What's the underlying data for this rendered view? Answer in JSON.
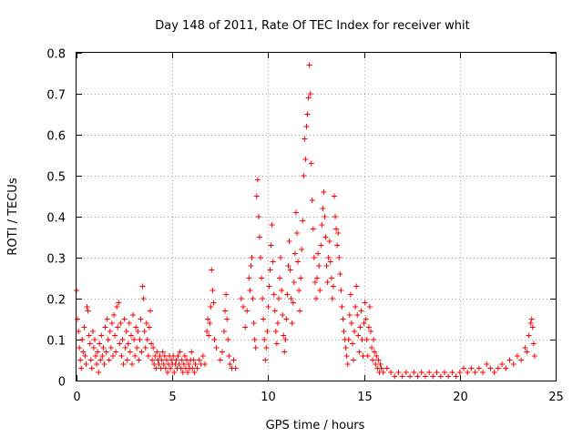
{
  "chart_data": {
    "type": "scatter",
    "title": "Day 148 of 2011, Rate Of TEC Index for receiver whit",
    "xlabel": "GPS time / hours",
    "ylabel": "ROTI / TECUs",
    "xlim": [
      0,
      25
    ],
    "ylim": [
      0,
      0.8
    ],
    "xticks": [
      0,
      5,
      10,
      15,
      20,
      25
    ],
    "yticks": [
      0,
      0.1,
      0.2,
      0.3,
      0.4,
      0.5,
      0.6,
      0.7,
      0.8
    ],
    "xtick_labels": [
      "0",
      "5",
      "10",
      "15",
      "20",
      "25"
    ],
    "ytick_labels": [
      "0",
      "0.1",
      "0.2",
      "0.3",
      "0.4",
      "0.5",
      "0.6",
      "0.7",
      "0.8"
    ],
    "grid": true,
    "marker": "plus",
    "color": "#ff0000",
    "points": [
      [
        0.0,
        0.22
      ],
      [
        0.05,
        0.15
      ],
      [
        0.1,
        0.12
      ],
      [
        0.15,
        0.08
      ],
      [
        0.2,
        0.05
      ],
      [
        0.25,
        0.03
      ],
      [
        0.3,
        0.1
      ],
      [
        0.35,
        0.07
      ],
      [
        0.4,
        0.13
      ],
      [
        0.45,
        0.06
      ],
      [
        0.5,
        0.04
      ],
      [
        0.55,
        0.18
      ],
      [
        0.6,
        0.17
      ],
      [
        0.65,
        0.11
      ],
      [
        0.7,
        0.09
      ],
      [
        0.75,
        0.05
      ],
      [
        0.8,
        0.03
      ],
      [
        0.85,
        0.12
      ],
      [
        0.9,
        0.08
      ],
      [
        0.95,
        0.1
      ],
      [
        1.0,
        0.06
      ],
      [
        1.05,
        0.04
      ],
      [
        1.1,
        0.07
      ],
      [
        1.15,
        0.02
      ],
      [
        1.2,
        0.09
      ],
      [
        1.25,
        0.05
      ],
      [
        1.3,
        0.11
      ],
      [
        1.35,
        0.06
      ],
      [
        1.4,
        0.08
      ],
      [
        1.45,
        0.04
      ],
      [
        1.5,
        0.13
      ],
      [
        1.55,
        0.07
      ],
      [
        1.6,
        0.15
      ],
      [
        1.65,
        0.1
      ],
      [
        1.7,
        0.05
      ],
      [
        1.75,
        0.12
      ],
      [
        1.8,
        0.08
      ],
      [
        1.85,
        0.14
      ],
      [
        1.9,
        0.06
      ],
      [
        1.95,
        0.16
      ],
      [
        2.0,
        0.11
      ],
      [
        2.05,
        0.07
      ],
      [
        2.1,
        0.18
      ],
      [
        2.15,
        0.13
      ],
      [
        2.2,
        0.19
      ],
      [
        2.25,
        0.09
      ],
      [
        2.3,
        0.14
      ],
      [
        2.35,
        0.06
      ],
      [
        2.4,
        0.1
      ],
      [
        2.45,
        0.04
      ],
      [
        2.5,
        0.15
      ],
      [
        2.55,
        0.08
      ],
      [
        2.6,
        0.12
      ],
      [
        2.65,
        0.05
      ],
      [
        2.7,
        0.09
      ],
      [
        2.75,
        0.14
      ],
      [
        2.8,
        0.07
      ],
      [
        2.85,
        0.11
      ],
      [
        2.9,
        0.04
      ],
      [
        2.95,
        0.16
      ],
      [
        3.0,
        0.1
      ],
      [
        3.05,
        0.06
      ],
      [
        3.1,
        0.13
      ],
      [
        3.15,
        0.08
      ],
      [
        3.2,
        0.12
      ],
      [
        3.25,
        0.05
      ],
      [
        3.3,
        0.1
      ],
      [
        3.35,
        0.15
      ],
      [
        3.4,
        0.07
      ],
      [
        3.45,
        0.23
      ],
      [
        3.5,
        0.2
      ],
      [
        3.55,
        0.12
      ],
      [
        3.6,
        0.08
      ],
      [
        3.65,
        0.14
      ],
      [
        3.7,
        0.1
      ],
      [
        3.75,
        0.06
      ],
      [
        3.8,
        0.13
      ],
      [
        3.85,
        0.17
      ],
      [
        3.9,
        0.09
      ],
      [
        3.95,
        0.05
      ],
      [
        4.0,
        0.08
      ],
      [
        4.05,
        0.04
      ],
      [
        4.1,
        0.06
      ],
      [
        4.15,
        0.03
      ],
      [
        4.2,
        0.07
      ],
      [
        4.25,
        0.05
      ],
      [
        4.3,
        0.04
      ],
      [
        4.35,
        0.06
      ],
      [
        4.4,
        0.03
      ],
      [
        4.45,
        0.05
      ],
      [
        4.5,
        0.07
      ],
      [
        4.55,
        0.04
      ],
      [
        4.6,
        0.06
      ],
      [
        4.65,
        0.03
      ],
      [
        4.7,
        0.05
      ],
      [
        4.75,
        0.02
      ],
      [
        4.8,
        0.04
      ],
      [
        4.85,
        0.06
      ],
      [
        4.9,
        0.03
      ],
      [
        4.95,
        0.05
      ],
      [
        5.0,
        0.04
      ],
      [
        5.05,
        0.06
      ],
      [
        5.1,
        0.02
      ],
      [
        5.15,
        0.04
      ],
      [
        5.2,
        0.05
      ],
      [
        5.25,
        0.03
      ],
      [
        5.3,
        0.06
      ],
      [
        5.35,
        0.04
      ],
      [
        5.4,
        0.07
      ],
      [
        5.45,
        0.03
      ],
      [
        5.5,
        0.05
      ],
      [
        5.55,
        0.02
      ],
      [
        5.6,
        0.04
      ],
      [
        5.65,
        0.06
      ],
      [
        5.7,
        0.03
      ],
      [
        5.75,
        0.05
      ],
      [
        5.8,
        0.02
      ],
      [
        5.85,
        0.04
      ],
      [
        5.9,
        0.03
      ],
      [
        5.95,
        0.05
      ],
      [
        6.0,
        0.07
      ],
      [
        6.05,
        0.03
      ],
      [
        6.1,
        0.05
      ],
      [
        6.15,
        0.02
      ],
      [
        6.2,
        0.04
      ],
      [
        6.3,
        0.03
      ],
      [
        6.4,
        0.05
      ],
      [
        6.5,
        0.04
      ],
      [
        6.6,
        0.06
      ],
      [
        6.7,
        0.04
      ],
      [
        6.8,
        0.12
      ],
      [
        6.85,
        0.15
      ],
      [
        6.9,
        0.11
      ],
      [
        6.95,
        0.14
      ],
      [
        7.0,
        0.18
      ],
      [
        7.05,
        0.27
      ],
      [
        7.1,
        0.22
      ],
      [
        7.15,
        0.19
      ],
      [
        7.2,
        0.1
      ],
      [
        7.3,
        0.08
      ],
      [
        7.5,
        0.05
      ],
      [
        7.6,
        0.07
      ],
      [
        7.7,
        0.12
      ],
      [
        7.75,
        0.17
      ],
      [
        7.8,
        0.21
      ],
      [
        7.85,
        0.15
      ],
      [
        7.9,
        0.1
      ],
      [
        7.95,
        0.06
      ],
      [
        8.0,
        0.04
      ],
      [
        8.1,
        0.03
      ],
      [
        8.2,
        0.05
      ],
      [
        8.3,
        0.03
      ],
      [
        8.6,
        0.2
      ],
      [
        8.7,
        0.18
      ],
      [
        8.8,
        0.13
      ],
      [
        8.9,
        0.17
      ],
      [
        9.0,
        0.25
      ],
      [
        9.05,
        0.22
      ],
      [
        9.1,
        0.28
      ],
      [
        9.15,
        0.3
      ],
      [
        9.2,
        0.2
      ],
      [
        9.25,
        0.14
      ],
      [
        9.3,
        0.1
      ],
      [
        9.35,
        0.08
      ],
      [
        9.4,
        0.45
      ],
      [
        9.45,
        0.49
      ],
      [
        9.5,
        0.4
      ],
      [
        9.55,
        0.35
      ],
      [
        9.6,
        0.3
      ],
      [
        9.65,
        0.25
      ],
      [
        9.7,
        0.2
      ],
      [
        9.75,
        0.15
      ],
      [
        9.8,
        0.1
      ],
      [
        9.85,
        0.05
      ],
      [
        9.9,
        0.08
      ],
      [
        9.95,
        0.12
      ],
      [
        10.0,
        0.18
      ],
      [
        10.05,
        0.23
      ],
      [
        10.1,
        0.27
      ],
      [
        10.15,
        0.33
      ],
      [
        10.2,
        0.38
      ],
      [
        10.25,
        0.29
      ],
      [
        10.3,
        0.21
      ],
      [
        10.35,
        0.17
      ],
      [
        10.4,
        0.12
      ],
      [
        10.45,
        0.09
      ],
      [
        10.5,
        0.14
      ],
      [
        10.55,
        0.2
      ],
      [
        10.6,
        0.25
      ],
      [
        10.65,
        0.3
      ],
      [
        10.7,
        0.22
      ],
      [
        10.75,
        0.16
      ],
      [
        10.8,
        0.11
      ],
      [
        10.85,
        0.07
      ],
      [
        10.9,
        0.1
      ],
      [
        10.95,
        0.15
      ],
      [
        11.0,
        0.21
      ],
      [
        11.05,
        0.28
      ],
      [
        11.1,
        0.34
      ],
      [
        11.15,
        0.27
      ],
      [
        11.2,
        0.2
      ],
      [
        11.25,
        0.14
      ],
      [
        11.3,
        0.19
      ],
      [
        11.35,
        0.24
      ],
      [
        11.4,
        0.31
      ],
      [
        11.45,
        0.41
      ],
      [
        11.5,
        0.36
      ],
      [
        11.55,
        0.29
      ],
      [
        11.6,
        0.22
      ],
      [
        11.65,
        0.17
      ],
      [
        11.7,
        0.25
      ],
      [
        11.75,
        0.32
      ],
      [
        11.8,
        0.39
      ],
      [
        11.85,
        0.5
      ],
      [
        11.9,
        0.59
      ],
      [
        11.95,
        0.54
      ],
      [
        12.0,
        0.62
      ],
      [
        12.05,
        0.65
      ],
      [
        12.1,
        0.69
      ],
      [
        12.15,
        0.77
      ],
      [
        12.2,
        0.7
      ],
      [
        12.25,
        0.53
      ],
      [
        12.3,
        0.44
      ],
      [
        12.35,
        0.37
      ],
      [
        12.4,
        0.3
      ],
      [
        12.45,
        0.24
      ],
      [
        12.5,
        0.2
      ],
      [
        12.55,
        0.25
      ],
      [
        12.6,
        0.31
      ],
      [
        12.65,
        0.28
      ],
      [
        12.7,
        0.22
      ],
      [
        12.75,
        0.33
      ],
      [
        12.8,
        0.38
      ],
      [
        12.85,
        0.42
      ],
      [
        12.9,
        0.46
      ],
      [
        12.95,
        0.4
      ],
      [
        13.0,
        0.35
      ],
      [
        13.05,
        0.28
      ],
      [
        13.1,
        0.24
      ],
      [
        13.15,
        0.3
      ],
      [
        13.2,
        0.34
      ],
      [
        13.25,
        0.29
      ],
      [
        13.3,
        0.25
      ],
      [
        13.35,
        0.2
      ],
      [
        13.4,
        0.23
      ],
      [
        13.45,
        0.45
      ],
      [
        13.5,
        0.4
      ],
      [
        13.55,
        0.37
      ],
      [
        13.6,
        0.33
      ],
      [
        13.65,
        0.36
      ],
      [
        13.7,
        0.3
      ],
      [
        13.75,
        0.26
      ],
      [
        13.8,
        0.22
      ],
      [
        13.85,
        0.18
      ],
      [
        13.9,
        0.15
      ],
      [
        13.95,
        0.12
      ],
      [
        14.0,
        0.1
      ],
      [
        14.05,
        0.08
      ],
      [
        14.1,
        0.06
      ],
      [
        14.15,
        0.04
      ],
      [
        14.2,
        0.1
      ],
      [
        14.25,
        0.16
      ],
      [
        14.3,
        0.21
      ],
      [
        14.35,
        0.14
      ],
      [
        14.4,
        0.09
      ],
      [
        14.45,
        0.05
      ],
      [
        14.5,
        0.12
      ],
      [
        14.55,
        0.18
      ],
      [
        14.6,
        0.23
      ],
      [
        14.65,
        0.16
      ],
      [
        14.7,
        0.11
      ],
      [
        14.75,
        0.07
      ],
      [
        14.8,
        0.13
      ],
      [
        14.85,
        0.17
      ],
      [
        14.9,
        0.1
      ],
      [
        14.95,
        0.06
      ],
      [
        15.0,
        0.14
      ],
      [
        15.05,
        0.19
      ],
      [
        15.1,
        0.15
      ],
      [
        15.15,
        0.1
      ],
      [
        15.2,
        0.06
      ],
      [
        15.25,
        0.13
      ],
      [
        15.3,
        0.18
      ],
      [
        15.35,
        0.12
      ],
      [
        15.4,
        0.08
      ],
      [
        15.45,
        0.05
      ],
      [
        15.5,
        0.1
      ],
      [
        15.55,
        0.07
      ],
      [
        15.6,
        0.04
      ],
      [
        15.65,
        0.06
      ],
      [
        15.7,
        0.03
      ],
      [
        15.75,
        0.05
      ],
      [
        15.8,
        0.02
      ],
      [
        15.85,
        0.04
      ],
      [
        15.9,
        0.03
      ],
      [
        16.0,
        0.02
      ],
      [
        16.2,
        0.03
      ],
      [
        16.4,
        0.02
      ],
      [
        16.6,
        0.01
      ],
      [
        16.8,
        0.02
      ],
      [
        17.0,
        0.01
      ],
      [
        17.2,
        0.02
      ],
      [
        17.4,
        0.01
      ],
      [
        17.6,
        0.02
      ],
      [
        17.8,
        0.01
      ],
      [
        18.0,
        0.02
      ],
      [
        18.2,
        0.01
      ],
      [
        18.4,
        0.02
      ],
      [
        18.6,
        0.01
      ],
      [
        18.8,
        0.02
      ],
      [
        19.0,
        0.01
      ],
      [
        19.2,
        0.02
      ],
      [
        19.4,
        0.01
      ],
      [
        19.6,
        0.02
      ],
      [
        19.8,
        0.01
      ],
      [
        20.0,
        0.02
      ],
      [
        20.2,
        0.03
      ],
      [
        20.4,
        0.02
      ],
      [
        20.6,
        0.03
      ],
      [
        20.8,
        0.02
      ],
      [
        21.0,
        0.03
      ],
      [
        21.2,
        0.02
      ],
      [
        21.4,
        0.04
      ],
      [
        21.6,
        0.03
      ],
      [
        21.8,
        0.02
      ],
      [
        22.0,
        0.03
      ],
      [
        22.2,
        0.04
      ],
      [
        22.4,
        0.03
      ],
      [
        22.6,
        0.05
      ],
      [
        22.8,
        0.04
      ],
      [
        23.0,
        0.06
      ],
      [
        23.2,
        0.05
      ],
      [
        23.4,
        0.08
      ],
      [
        23.5,
        0.07
      ],
      [
        23.6,
        0.11
      ],
      [
        23.7,
        0.14
      ],
      [
        23.75,
        0.15
      ],
      [
        23.8,
        0.13
      ],
      [
        23.85,
        0.09
      ],
      [
        23.9,
        0.06
      ]
    ]
  }
}
